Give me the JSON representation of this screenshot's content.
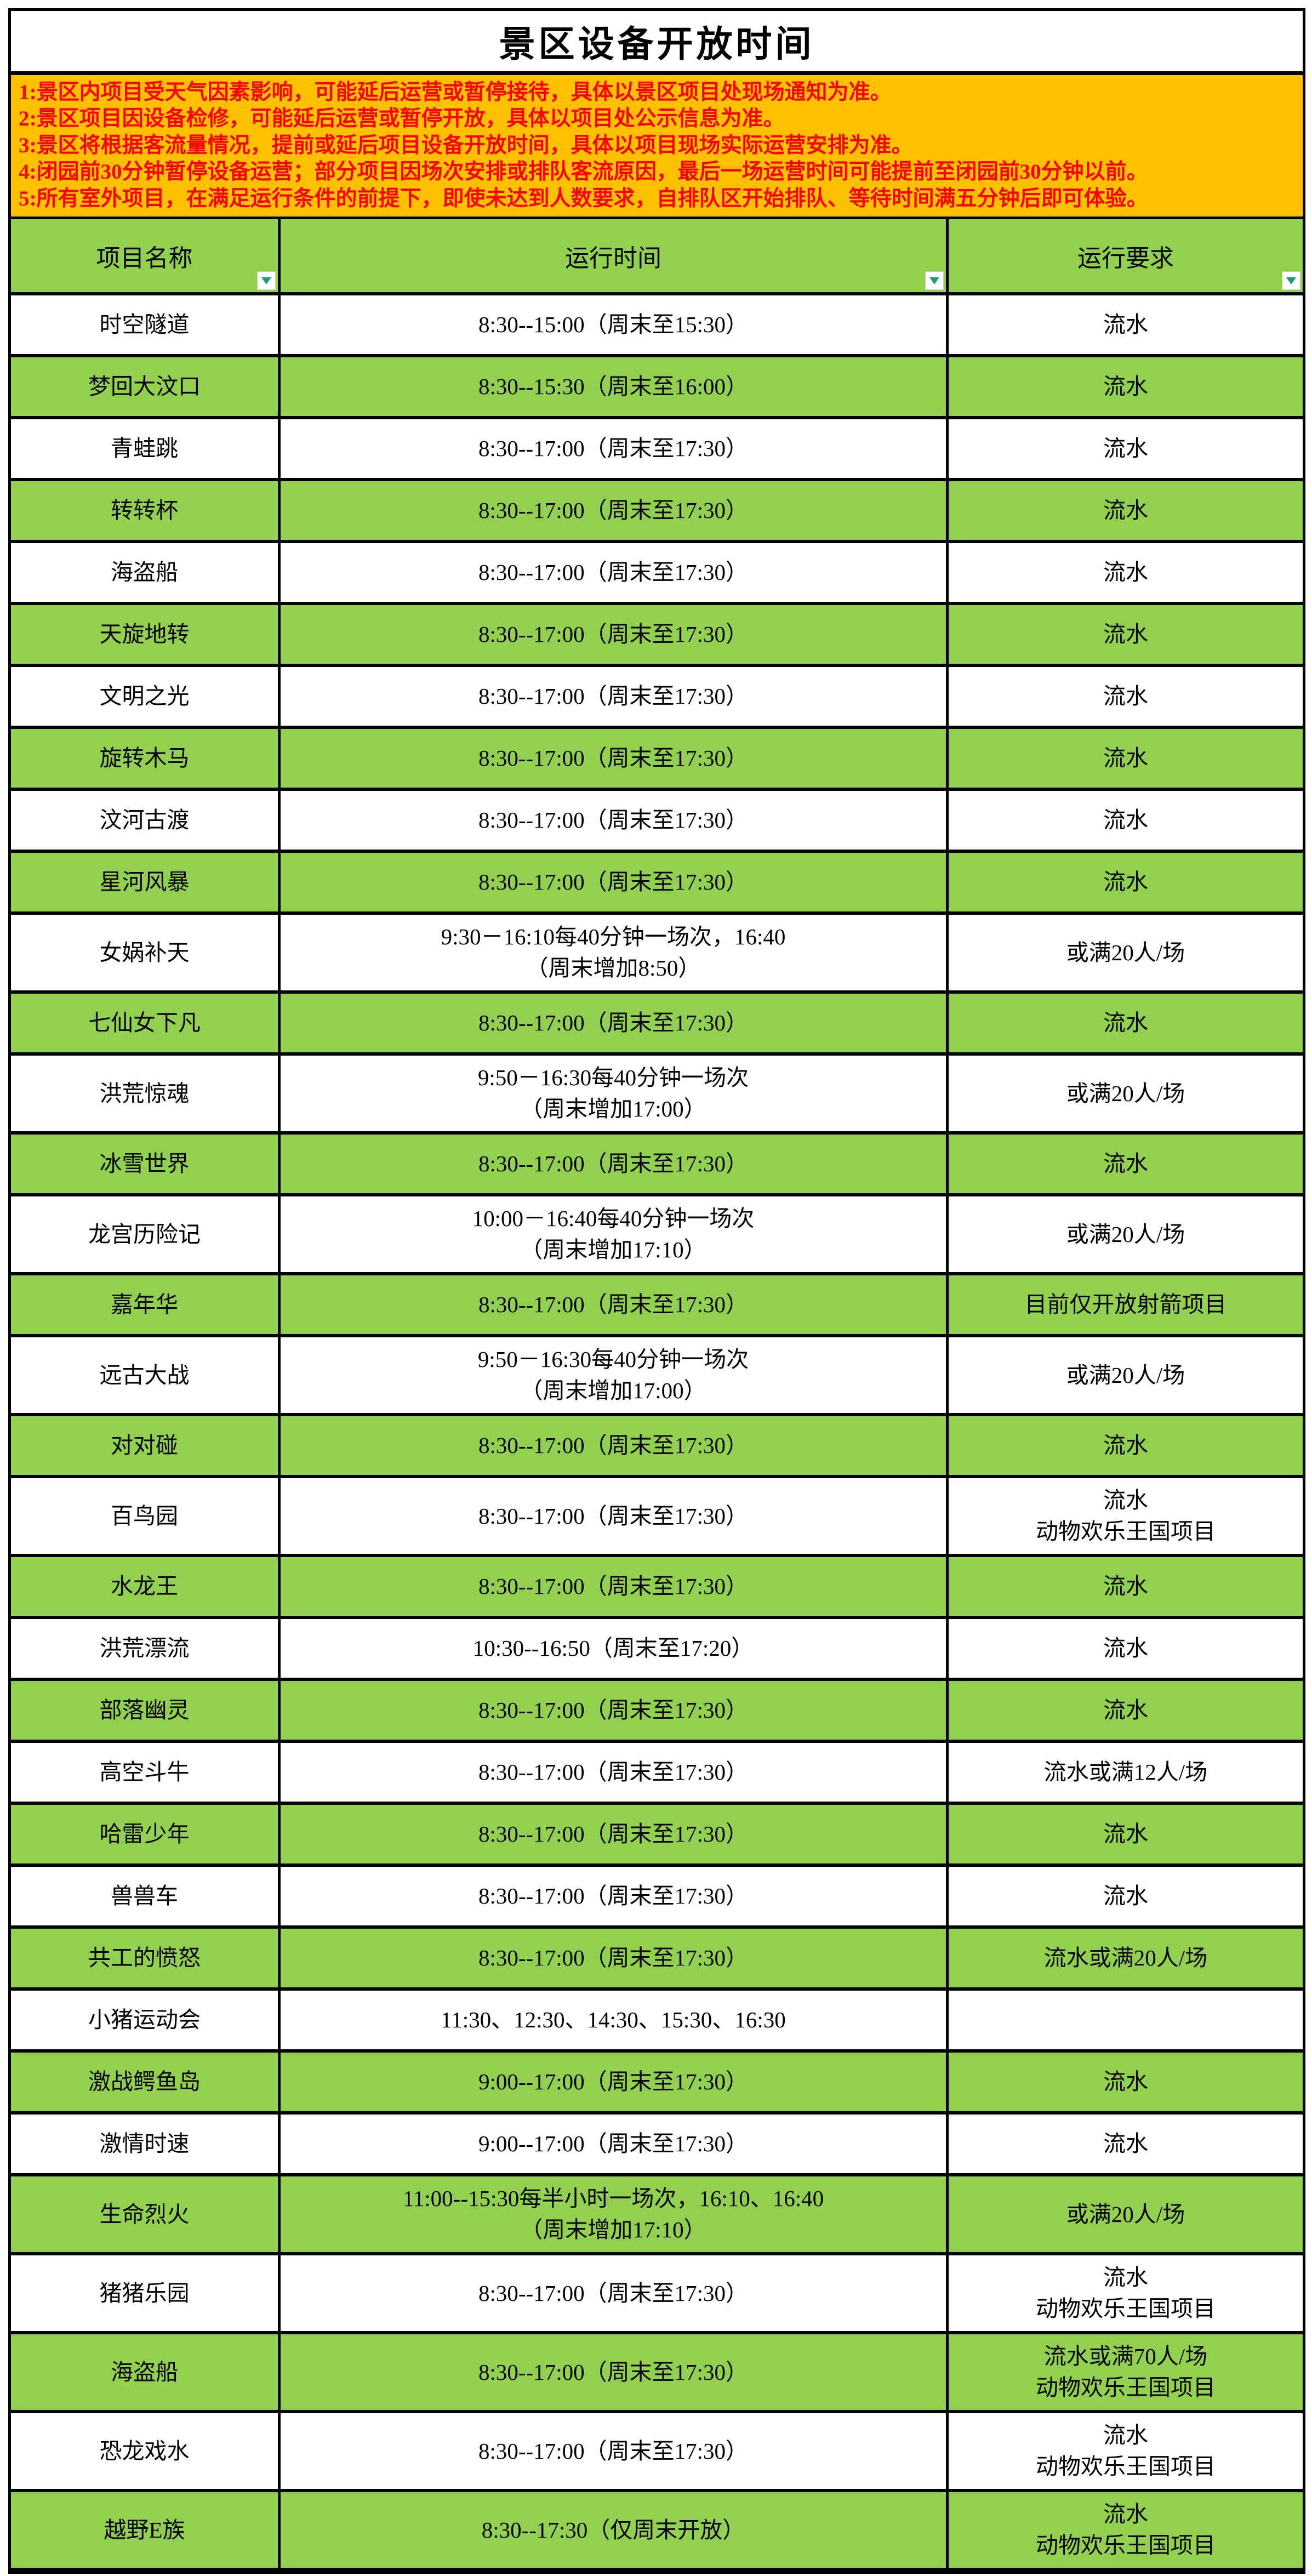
{
  "title": "景区设备开放时间",
  "notices": {
    "lines": [
      "1:景区内项目受天气因素影响，可能延后运营或暂停接待，具体以景区项目处现场通知为准。",
      "2:景区项目因设备检修，可能延后运营或暂停开放，具体以项目处公示信息为准。",
      "3:景区将根据客流量情况，提前或延后项目设备开放时间，具体以项目现场实际运营安排为准。",
      "4:闭园前30分钟暂停设备运营；部分项目因场次安排或排队客流原因，最后一场运营时间可能提前至闭园前30分钟以前。",
      "5:所有室外项目，在满足运行条件的前提下，即使未达到人数要求，自排队区开始排队、等待时间满五分钟后即可体验。"
    ]
  },
  "table": {
    "columns": [
      "项目名称",
      "运行时间",
      "运行要求"
    ],
    "filter_icon": "filter-dropdown-arrow",
    "rows": [
      {
        "name": "时空隧道",
        "time_lines": [
          "8:30--15:00（周末至15:30）"
        ],
        "req_lines": [
          "流水"
        ]
      },
      {
        "name": "梦回大汶口",
        "time_lines": [
          "8:30--15:30（周末至16:00）"
        ],
        "req_lines": [
          "流水"
        ]
      },
      {
        "name": "青蛙跳",
        "time_lines": [
          "8:30--17:00（周末至17:30）"
        ],
        "req_lines": [
          "流水"
        ]
      },
      {
        "name": "转转杯",
        "time_lines": [
          "8:30--17:00（周末至17:30）"
        ],
        "req_lines": [
          "流水"
        ]
      },
      {
        "name": "海盗船",
        "time_lines": [
          "8:30--17:00（周末至17:30）"
        ],
        "req_lines": [
          "流水"
        ]
      },
      {
        "name": "天旋地转",
        "time_lines": [
          "8:30--17:00（周末至17:30）"
        ],
        "req_lines": [
          "流水"
        ]
      },
      {
        "name": "文明之光",
        "time_lines": [
          "8:30--17:00（周末至17:30）"
        ],
        "req_lines": [
          "流水"
        ]
      },
      {
        "name": "旋转木马",
        "time_lines": [
          "8:30--17:00（周末至17:30）"
        ],
        "req_lines": [
          "流水"
        ]
      },
      {
        "name": "汶河古渡",
        "time_lines": [
          "8:30--17:00（周末至17:30）"
        ],
        "req_lines": [
          "流水"
        ]
      },
      {
        "name": "星河风暴",
        "time_lines": [
          "8:30--17:00（周末至17:30）"
        ],
        "req_lines": [
          "流水"
        ]
      },
      {
        "name": "女娲补天",
        "time_lines": [
          "9:30－16:10每40分钟一场次，16:40",
          "（周末增加8:50）"
        ],
        "req_lines": [
          "或满20人/场"
        ]
      },
      {
        "name": "七仙女下凡",
        "time_lines": [
          "8:30--17:00（周末至17:30）"
        ],
        "req_lines": [
          "流水"
        ]
      },
      {
        "name": "洪荒惊魂",
        "time_lines": [
          "9:50－16:30每40分钟一场次",
          "（周末增加17:00）"
        ],
        "req_lines": [
          "或满20人/场"
        ]
      },
      {
        "name": "冰雪世界",
        "time_lines": [
          "8:30--17:00（周末至17:30）"
        ],
        "req_lines": [
          "流水"
        ]
      },
      {
        "name": "龙宫历险记",
        "time_lines": [
          "10:00－16:40每40分钟一场次",
          "（周末增加17:10）"
        ],
        "req_lines": [
          "或满20人/场"
        ]
      },
      {
        "name": "嘉年华",
        "time_lines": [
          "8:30--17:00（周末至17:30）"
        ],
        "req_lines": [
          "目前仅开放射箭项目"
        ]
      },
      {
        "name": "远古大战",
        "time_lines": [
          "9:50－16:30每40分钟一场次",
          "（周末增加17:00）"
        ],
        "req_lines": [
          "或满20人/场"
        ]
      },
      {
        "name": "对对碰",
        "time_lines": [
          "8:30--17:00（周末至17:30）"
        ],
        "req_lines": [
          "流水"
        ]
      },
      {
        "name": "百鸟园",
        "time_lines": [
          "8:30--17:00（周末至17:30）"
        ],
        "req_lines": [
          "流水",
          "动物欢乐王国项目"
        ]
      },
      {
        "name": "水龙王",
        "time_lines": [
          "8:30--17:00（周末至17:30）"
        ],
        "req_lines": [
          "流水"
        ]
      },
      {
        "name": "洪荒漂流",
        "time_lines": [
          "10:30--16:50（周末至17:20）"
        ],
        "req_lines": [
          "流水"
        ]
      },
      {
        "name": "部落幽灵",
        "time_lines": [
          "8:30--17:00（周末至17:30）"
        ],
        "req_lines": [
          "流水"
        ]
      },
      {
        "name": "高空斗牛",
        "time_lines": [
          "8:30--17:00（周末至17:30）"
        ],
        "req_lines": [
          "流水或满12人/场"
        ]
      },
      {
        "name": "哈雷少年",
        "time_lines": [
          "8:30--17:00（周末至17:30）"
        ],
        "req_lines": [
          "流水"
        ]
      },
      {
        "name": "兽兽车",
        "time_lines": [
          "8:30--17:00（周末至17:30）"
        ],
        "req_lines": [
          "流水"
        ]
      },
      {
        "name": "共工的愤怒",
        "time_lines": [
          "8:30--17:00（周末至17:30）"
        ],
        "req_lines": [
          "流水或满20人/场"
        ]
      },
      {
        "name": "小猪运动会",
        "time_lines": [
          "11:30、12:30、14:30、15:30、16:30"
        ],
        "req_lines": []
      },
      {
        "name": "激战鳄鱼岛",
        "time_lines": [
          "9:00--17:00（周末至17:30）"
        ],
        "req_lines": [
          "流水"
        ]
      },
      {
        "name": "激情时速",
        "time_lines": [
          "9:00--17:00（周末至17:30）"
        ],
        "req_lines": [
          "流水"
        ]
      },
      {
        "name": "生命烈火",
        "time_lines": [
          "11:00--15:30每半小时一场次，16:10、16:40",
          "（周末增加17:10）"
        ],
        "req_lines": [
          "或满20人/场"
        ]
      },
      {
        "name": "猪猪乐园",
        "time_lines": [
          "8:30--17:00（周末至17:30）"
        ],
        "req_lines": [
          "流水",
          "动物欢乐王国项目"
        ]
      },
      {
        "name": "海盗船",
        "time_lines": [
          "8:30--17:00（周末至17:30）"
        ],
        "req_lines": [
          "流水或满70人/场",
          "动物欢乐王国项目"
        ]
      },
      {
        "name": "恐龙戏水",
        "time_lines": [
          "8:30--17:00（周末至17:30）"
        ],
        "req_lines": [
          "流水",
          "动物欢乐王国项目"
        ]
      },
      {
        "name": "越野E族",
        "time_lines": [
          "8:30--17:30（仅周末开放）"
        ],
        "req_lines": [
          "流水",
          "动物欢乐王国项目"
        ]
      }
    ]
  },
  "colors": {
    "row_green": "#92D050",
    "notice_orange": "#FFC000",
    "notice_text_red": "#FF0000",
    "border_black": "#000000",
    "filter_arrow_teal": "#1E9E77"
  }
}
